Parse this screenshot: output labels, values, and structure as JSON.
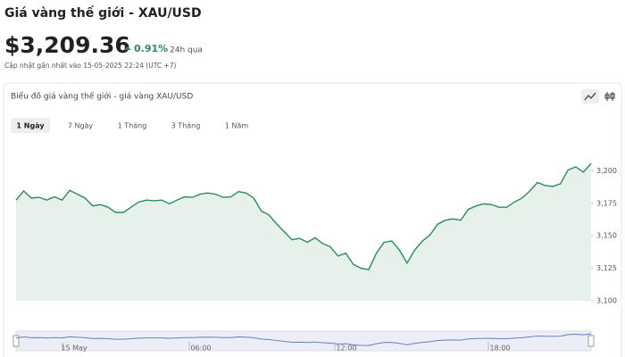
{
  "header": {
    "title": "Giá vàng thế giới - XAU/USD",
    "price": "$3,209.36",
    "change": "0.91%",
    "period": "24h qua",
    "updated": "Cập nhật gần nhất vào 15-05-2025 22:24 (UTC +7)"
  },
  "card": {
    "title": "Biểu đồ giá vàng thế giới - giá vàng XAU/USD",
    "tabs": [
      "1 Ngày",
      "7 Ngày",
      "1 Tháng",
      "3 Tháng",
      "1 Năm"
    ]
  },
  "navigator": {
    "labels": [
      "15 May",
      "06:00",
      "12:00",
      "18:00"
    ]
  },
  "chart_data": {
    "type": "line",
    "color": "#2e8b57",
    "values": [
      3177.5,
      3184.5,
      3179,
      3179.6,
      3177.5,
      3180,
      3177.5,
      3185,
      3182,
      3179,
      3173,
      3174,
      3172,
      3168,
      3168,
      3172,
      3176,
      3177.5,
      3177,
      3177.5,
      3174.6,
      3177.5,
      3180,
      3179.6,
      3182,
      3183,
      3182,
      3179.6,
      3180,
      3184,
      3183,
      3179,
      3169,
      3166,
      3159,
      3153,
      3147,
      3148,
      3145,
      3148.5,
      3144,
      3141.5,
      3134.5,
      3136.6,
      3128,
      3125,
      3124,
      3136.6,
      3145,
      3146,
      3139,
      3129,
      3139,
      3146,
      3150.7,
      3159,
      3162,
      3163,
      3162,
      3170.4,
      3173,
      3174.6,
      3174,
      3172,
      3172,
      3176,
      3179,
      3184.5,
      3191,
      3188.7,
      3188,
      3190,
      3200.7,
      3203,
      3199,
      3205.6
    ],
    "ylim": [
      3100,
      3225
    ],
    "yticks": [
      {
        "value": 3100,
        "label": "3,100"
      },
      {
        "value": 3125,
        "label": "3,125"
      },
      {
        "value": 3150,
        "label": "3,150"
      },
      {
        "value": 3175,
        "label": "3,175"
      },
      {
        "value": 3200,
        "label": "3,200"
      }
    ]
  }
}
